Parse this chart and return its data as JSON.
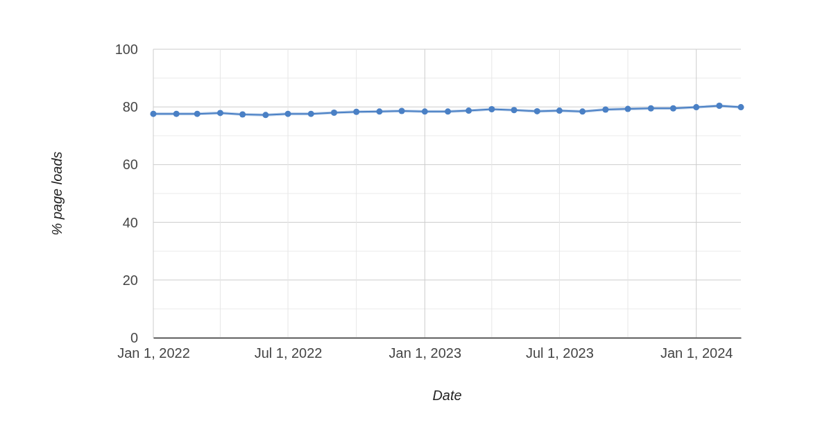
{
  "chart_data": {
    "type": "line",
    "xlabel": "Date",
    "ylabel": "% page loads",
    "x": [
      "2022-01-01",
      "2022-02-01",
      "2022-03-01",
      "2022-04-01",
      "2022-05-01",
      "2022-06-01",
      "2022-07-01",
      "2022-08-01",
      "2022-09-01",
      "2022-10-01",
      "2022-11-01",
      "2022-12-01",
      "2023-01-01",
      "2023-02-01",
      "2023-03-01",
      "2023-04-01",
      "2023-05-01",
      "2023-06-01",
      "2023-07-01",
      "2023-08-01",
      "2023-09-01",
      "2023-10-01",
      "2023-11-01",
      "2023-12-01",
      "2024-01-01",
      "2024-02-01",
      "2024-03-01"
    ],
    "series": [
      {
        "color": "#4a80c5",
        "values": [
          77.6,
          77.6,
          77.6,
          77.9,
          77.4,
          77.2,
          77.6,
          77.6,
          78.0,
          78.3,
          78.4,
          78.6,
          78.4,
          78.4,
          78.7,
          79.2,
          78.9,
          78.5,
          78.7,
          78.4,
          79.1,
          79.3,
          79.5,
          79.5,
          79.9,
          80.4,
          79.9
        ],
        "lower": [
          77.1,
          77.1,
          77.1,
          77.4,
          76.9,
          76.7,
          77.1,
          77.1,
          77.5,
          77.8,
          77.9,
          78.1,
          77.9,
          77.9,
          78.2,
          78.7,
          78.4,
          78.0,
          78.2,
          77.9,
          78.6,
          78.8,
          79.0,
          79.0,
          79.4,
          79.9,
          79.4
        ],
        "upper": [
          78.1,
          78.1,
          78.1,
          78.4,
          77.9,
          77.7,
          78.1,
          78.1,
          78.5,
          78.8,
          78.9,
          79.1,
          78.9,
          78.9,
          79.2,
          79.7,
          79.4,
          79.0,
          79.2,
          78.9,
          79.6,
          79.8,
          80.0,
          80.0,
          80.4,
          80.9,
          80.4
        ]
      }
    ],
    "xlim": [
      "2022-01-01",
      "2024-03-01"
    ],
    "xticks": [
      {
        "value": "2022-01-01",
        "label": "Jan 1, 2022"
      },
      {
        "value": "2022-04-01",
        "label": null
      },
      {
        "value": "2022-07-01",
        "label": "Jul 1, 2022"
      },
      {
        "value": "2022-10-01",
        "label": null
      },
      {
        "value": "2023-01-01",
        "label": "Jan 1, 2023"
      },
      {
        "value": "2023-04-01",
        "label": null
      },
      {
        "value": "2023-07-01",
        "label": "Jul 1, 2023"
      },
      {
        "value": "2023-10-01",
        "label": null
      },
      {
        "value": "2024-01-01",
        "label": "Jan 1, 2024"
      }
    ],
    "ylim": [
      0,
      100
    ],
    "yticks": [
      0,
      {
        "value": 10,
        "label": null
      },
      20,
      {
        "value": 30,
        "label": null
      },
      40,
      {
        "value": 50,
        "label": null
      },
      60,
      {
        "value": 70,
        "label": null
      },
      80,
      {
        "value": 90,
        "label": null
      },
      100
    ],
    "grid": true,
    "marker": "circle",
    "line_style": "solid"
  }
}
